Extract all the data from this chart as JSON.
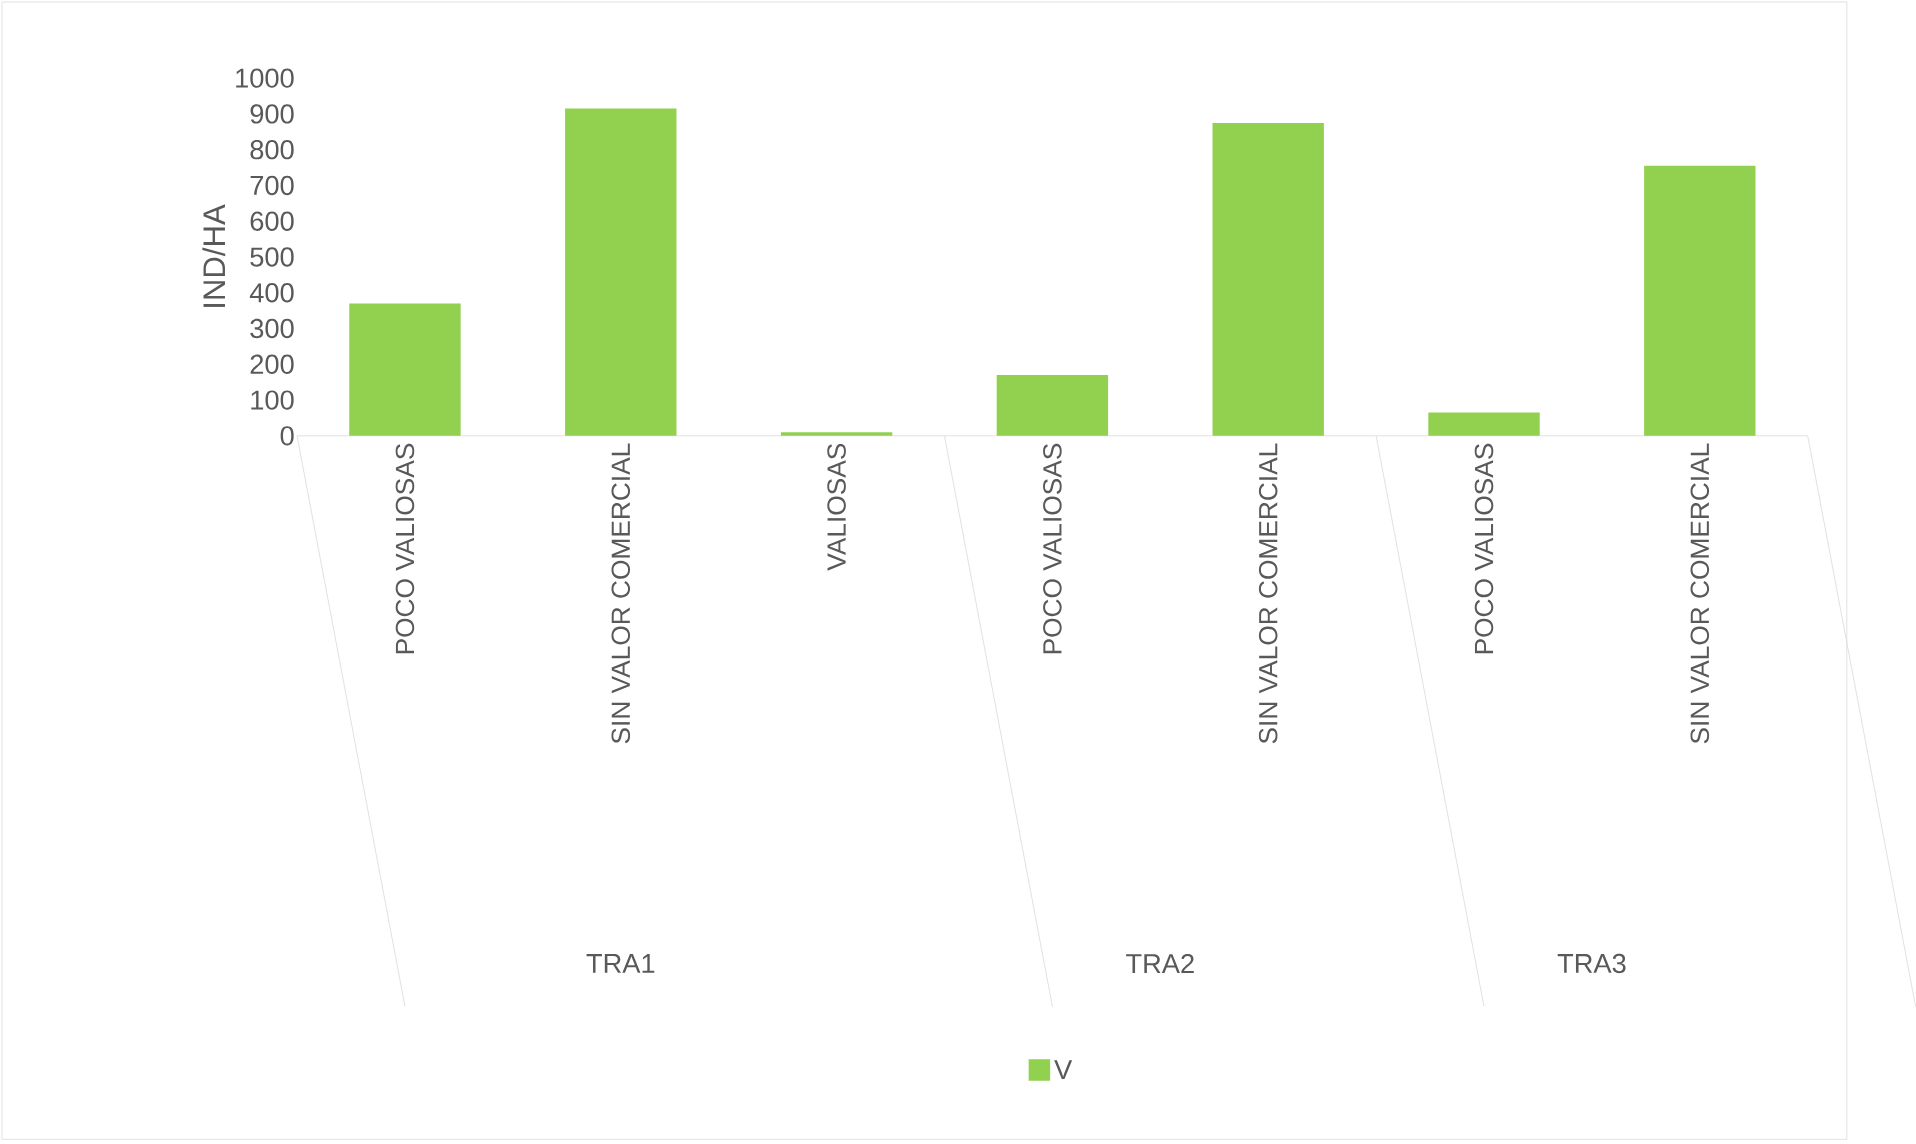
{
  "chart_data": {
    "type": "bar",
    "ylabel": "IND/HA",
    "categories": [
      "POCO VALIOSAS",
      "SIN VALOR COMERCIAL",
      "VALIOSAS",
      "POCO VALIOSAS",
      "SIN VALOR COMERCIAL",
      "POCO VALIOSAS",
      "SIN VALOR COMERCIAL"
    ],
    "series": [
      {
        "name": "V",
        "color": "#92d050",
        "values": [
          370,
          915,
          10,
          170,
          875,
          65,
          755
        ]
      }
    ],
    "ylim": [
      0,
      1000
    ],
    "yticks": [
      0,
      100,
      200,
      300,
      400,
      500,
      600,
      700,
      800,
      900,
      1000
    ],
    "legend": "bottom",
    "annotations": [
      "TRA1",
      "TRA2",
      "TRA3"
    ]
  }
}
